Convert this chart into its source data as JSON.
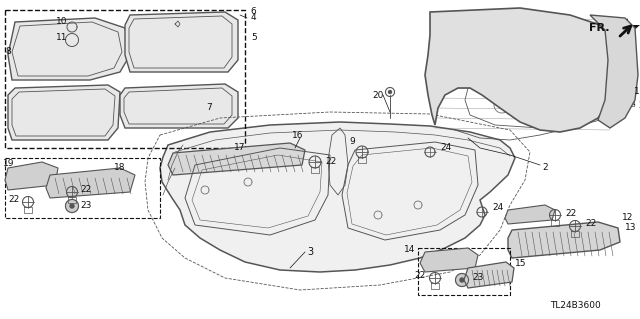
{
  "bg_color": "#f5f5f5",
  "diagram_code": "TL24B3600",
  "fig_width": 6.4,
  "fig_height": 3.19,
  "dpi": 100,
  "gray": "#888888",
  "darkgray": "#555555",
  "black": "#111111",
  "lightgray": "#cccccc"
}
